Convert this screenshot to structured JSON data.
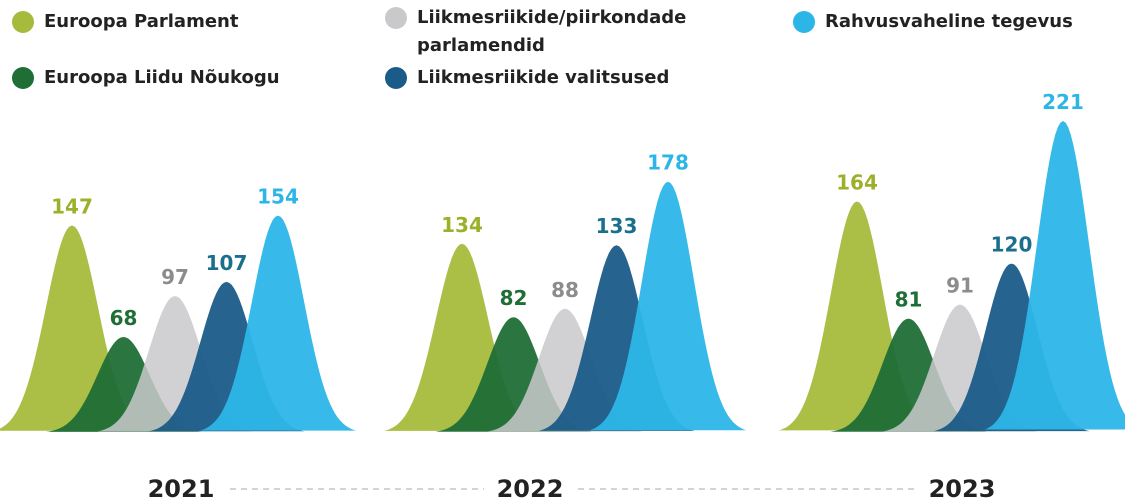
{
  "chart_data": {
    "type": "bell",
    "categories": [
      "2021",
      "2022",
      "2023"
    ],
    "series": [
      {
        "name": "Euroopa Parlament",
        "color": "#a6ba3c",
        "label_color": "#9db02a",
        "values": [
          147,
          134,
          164
        ]
      },
      {
        "name": "Euroopa Liidu Nõukogu",
        "color": "#1f6e36",
        "label_color": "#1f6e36",
        "values": [
          68,
          82,
          81
        ]
      },
      {
        "name": "Liikmesriikide/piirkondade parlamendid",
        "color": "#c9c9cb",
        "label_color": "#8c8c8c",
        "values": [
          97,
          88,
          91
        ]
      },
      {
        "name": "Liikmesriikide valitsused",
        "color": "#1a5b88",
        "label_color": "#1a6f8c",
        "values": [
          107,
          133,
          120
        ]
      },
      {
        "name": "Rahvusvaheline tegevus",
        "color": "#2cb6e8",
        "label_color": "#2cb6e8",
        "values": [
          154,
          178,
          221
        ]
      }
    ]
  }
}
